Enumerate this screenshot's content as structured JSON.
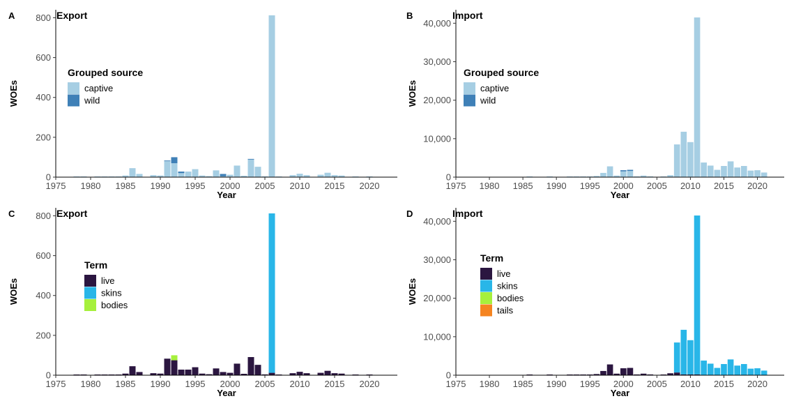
{
  "chart_data": [
    {
      "type": "bar",
      "stacked": true,
      "panel_letter": "A",
      "title": "Export",
      "xlabel": "Year",
      "ylabel": "WOEs",
      "xlim": [
        1975,
        2024
      ],
      "ylim": [
        0,
        840
      ],
      "xticks": [
        1975,
        1980,
        1985,
        1990,
        1995,
        2000,
        2005,
        2010,
        2015,
        2020
      ],
      "xtick_labels": [
        "1975",
        "1980",
        "1985",
        "1990",
        "1995",
        "2000",
        "2005",
        "2010",
        "2015",
        "2020"
      ],
      "yticks": [
        0,
        200,
        400,
        600,
        800
      ],
      "ytick_labels": [
        "0",
        "200",
        "400",
        "600",
        "800"
      ],
      "legend": {
        "title": "Grouped source",
        "position": "upper-left"
      },
      "x": [
        1978,
        1979,
        1981,
        1982,
        1983,
        1984,
        1985,
        1986,
        1987,
        1989,
        1990,
        1991,
        1992,
        1993,
        1994,
        1995,
        1996,
        1997,
        1998,
        1999,
        2000,
        2001,
        2002,
        2003,
        2004,
        2005,
        2006,
        2007,
        2009,
        2010,
        2011,
        2013,
        2014,
        2015,
        2016,
        2018,
        2020
      ],
      "series": [
        {
          "name": "captive",
          "color": "#a6cee3",
          "values": [
            3,
            1,
            2,
            2,
            2,
            2,
            8,
            45,
            16,
            10,
            8,
            80,
            70,
            20,
            28,
            40,
            8,
            5,
            34,
            4,
            12,
            58,
            7,
            88,
            52,
            4,
            812,
            2,
            10,
            17,
            10,
            12,
            22,
            10,
            8,
            1,
            1
          ]
        },
        {
          "name": "wild",
          "color": "#3f80b7",
          "values": [
            0,
            0,
            0,
            0,
            0,
            0,
            0,
            0,
            0,
            0,
            0,
            3,
            30,
            8,
            0,
            0,
            0,
            0,
            0,
            12,
            0,
            0,
            0,
            3,
            0,
            0,
            0,
            0,
            0,
            0,
            0,
            0,
            0,
            0,
            0,
            0,
            0
          ]
        }
      ]
    },
    {
      "type": "bar",
      "stacked": true,
      "panel_letter": "B",
      "title": "Import",
      "xlabel": "Year",
      "ylabel": "WOEs",
      "xlim": [
        1975,
        2024
      ],
      "ylim": [
        0,
        43500
      ],
      "xticks": [
        1975,
        1980,
        1985,
        1990,
        1995,
        2000,
        2005,
        2010,
        2015,
        2020
      ],
      "xtick_labels": [
        "1975",
        "1980",
        "1985",
        "1990",
        "1995",
        "2000",
        "2005",
        "2010",
        "2015",
        "2020"
      ],
      "yticks": [
        0,
        10000,
        20000,
        30000,
        40000
      ],
      "ytick_labels": [
        "0",
        "10,000",
        "20,000",
        "30,000",
        "40,000"
      ],
      "legend": {
        "title": "Grouped source",
        "position": "upper-left"
      },
      "x": [
        1986,
        1989,
        1992,
        1993,
        1994,
        1995,
        1996,
        1997,
        1998,
        1999,
        2000,
        2001,
        2002,
        2003,
        2004,
        2006,
        2007,
        2008,
        2009,
        2010,
        2011,
        2012,
        2013,
        2014,
        2015,
        2016,
        2017,
        2018,
        2019,
        2020,
        2021
      ],
      "series": [
        {
          "name": "captive",
          "color": "#a6cee3",
          "values": [
            50,
            30,
            100,
            80,
            60,
            30,
            300,
            1100,
            2800,
            400,
            1500,
            1600,
            200,
            400,
            200,
            30,
            500,
            8500,
            11800,
            9100,
            41500,
            3800,
            3000,
            1900,
            2900,
            4100,
            2500,
            2900,
            1700,
            1800,
            1200
          ]
        },
        {
          "name": "wild",
          "color": "#3f80b7",
          "values": [
            0,
            0,
            0,
            0,
            0,
            0,
            0,
            0,
            0,
            0,
            300,
            300,
            0,
            0,
            0,
            0,
            0,
            0,
            0,
            0,
            0,
            0,
            0,
            0,
            0,
            0,
            0,
            0,
            0,
            0,
            0
          ]
        }
      ]
    },
    {
      "type": "bar",
      "stacked": true,
      "panel_letter": "C",
      "title": "Export",
      "xlabel": "Year",
      "ylabel": "WOEs",
      "xlim": [
        1975,
        2024
      ],
      "ylim": [
        0,
        840
      ],
      "xticks": [
        1975,
        1980,
        1985,
        1990,
        1995,
        2000,
        2005,
        2010,
        2015,
        2020
      ],
      "xtick_labels": [
        "1975",
        "1980",
        "1985",
        "1990",
        "1995",
        "2000",
        "2005",
        "2010",
        "2015",
        "2020"
      ],
      "yticks": [
        0,
        200,
        400,
        600,
        800
      ],
      "ytick_labels": [
        "0",
        "200",
        "400",
        "600",
        "800"
      ],
      "legend": {
        "title": "Term",
        "position": "left"
      },
      "x": [
        1978,
        1979,
        1981,
        1982,
        1983,
        1984,
        1985,
        1986,
        1987,
        1989,
        1990,
        1991,
        1992,
        1993,
        1994,
        1995,
        1996,
        1997,
        1998,
        1999,
        2000,
        2001,
        2002,
        2003,
        2004,
        2005,
        2006,
        2007,
        2009,
        2010,
        2011,
        2013,
        2014,
        2015,
        2016,
        2018,
        2020
      ],
      "series": [
        {
          "name": "live",
          "color": "#2b1640",
          "values": [
            3,
            1,
            2,
            2,
            2,
            2,
            8,
            45,
            16,
            10,
            8,
            83,
            75,
            28,
            28,
            40,
            8,
            5,
            34,
            16,
            12,
            58,
            7,
            91,
            52,
            4,
            12,
            2,
            10,
            17,
            10,
            12,
            22,
            10,
            8,
            1,
            1
          ]
        },
        {
          "name": "skins",
          "color": "#29b6e8",
          "values": [
            0,
            0,
            0,
            0,
            0,
            0,
            0,
            0,
            0,
            0,
            0,
            0,
            0,
            0,
            0,
            0,
            0,
            0,
            0,
            0,
            0,
            0,
            0,
            0,
            0,
            0,
            800,
            0,
            0,
            0,
            0,
            0,
            0,
            0,
            0,
            0,
            0
          ]
        },
        {
          "name": "bodies",
          "color": "#a6f03c",
          "values": [
            0,
            0,
            0,
            0,
            0,
            0,
            0,
            0,
            0,
            0,
            0,
            0,
            25,
            0,
            0,
            0,
            0,
            0,
            0,
            0,
            0,
            0,
            0,
            0,
            0,
            0,
            0,
            0,
            0,
            0,
            0,
            0,
            0,
            0,
            0,
            0,
            0
          ]
        }
      ]
    },
    {
      "type": "bar",
      "stacked": true,
      "panel_letter": "D",
      "title": "Import",
      "xlabel": "Year",
      "ylabel": "WOEs",
      "xlim": [
        1975,
        2024
      ],
      "ylim": [
        0,
        43500
      ],
      "xticks": [
        1975,
        1980,
        1985,
        1990,
        1995,
        2000,
        2005,
        2010,
        2015,
        2020
      ],
      "xtick_labels": [
        "1975",
        "1980",
        "1985",
        "1990",
        "1995",
        "2000",
        "2005",
        "2010",
        "2015",
        "2020"
      ],
      "yticks": [
        0,
        10000,
        20000,
        30000,
        40000
      ],
      "ytick_labels": [
        "0",
        "10,000",
        "20,000",
        "30,000",
        "40,000"
      ],
      "legend": {
        "title": "Term",
        "position": "left"
      },
      "x": [
        1986,
        1989,
        1992,
        1993,
        1994,
        1995,
        1996,
        1997,
        1998,
        1999,
        2000,
        2001,
        2002,
        2003,
        2004,
        2006,
        2007,
        2008,
        2009,
        2010,
        2011,
        2012,
        2013,
        2014,
        2015,
        2016,
        2017,
        2018,
        2019,
        2020,
        2021
      ],
      "series": [
        {
          "name": "live",
          "color": "#2b1640",
          "values": [
            50,
            30,
            100,
            80,
            60,
            30,
            300,
            1100,
            2800,
            400,
            1800,
            1900,
            200,
            400,
            200,
            30,
            500,
            700,
            200,
            200,
            200,
            0,
            0,
            0,
            0,
            0,
            0,
            0,
            0,
            0,
            0
          ]
        },
        {
          "name": "skins",
          "color": "#29b6e8",
          "values": [
            0,
            0,
            0,
            0,
            0,
            0,
            0,
            0,
            0,
            0,
            0,
            0,
            0,
            0,
            0,
            0,
            0,
            7800,
            11600,
            8900,
            41300,
            3800,
            3000,
            1900,
            2900,
            4100,
            2500,
            2900,
            1700,
            1800,
            1200
          ]
        },
        {
          "name": "bodies",
          "color": "#a6f03c",
          "values": [
            0,
            0,
            0,
            0,
            0,
            0,
            0,
            0,
            0,
            0,
            0,
            0,
            0,
            0,
            0,
            0,
            0,
            0,
            0,
            0,
            0,
            0,
            0,
            0,
            0,
            0,
            0,
            0,
            0,
            0,
            0
          ]
        },
        {
          "name": "tails",
          "color": "#f58420",
          "values": [
            0,
            0,
            0,
            0,
            0,
            0,
            0,
            0,
            0,
            0,
            0,
            0,
            0,
            0,
            0,
            0,
            0,
            0,
            0,
            0,
            0,
            0,
            0,
            0,
            0,
            0,
            0,
            0,
            0,
            0,
            0
          ]
        }
      ]
    }
  ]
}
